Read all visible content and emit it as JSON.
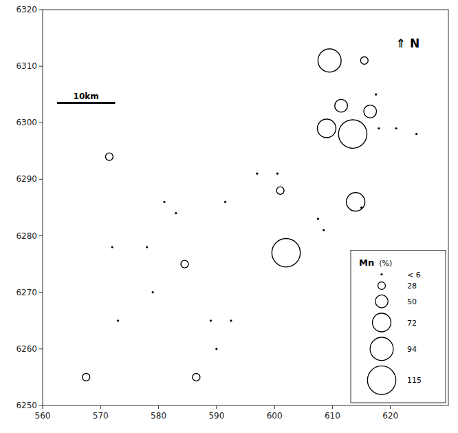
{
  "chart_data": {
    "type": "bubble",
    "xlim": [
      560,
      630
    ],
    "ylim": [
      6250,
      6320
    ],
    "xticks": [
      560,
      570,
      580,
      590,
      600,
      610,
      620
    ],
    "yticks": [
      6250,
      6260,
      6270,
      6280,
      6290,
      6300,
      6310,
      6320
    ],
    "grid": false,
    "legend": "lower right",
    "series": [
      {
        "color": "black",
        "x": [
          567.5,
          571.5,
          572.0,
          573.0,
          578.0,
          579.0,
          581.0,
          583.0,
          584.5,
          586.5,
          589.0,
          590.0,
          591.5,
          592.5,
          597.0,
          600.5,
          601.0,
          602.0,
          607.5,
          608.5,
          609.0,
          609.5,
          611.5,
          613.5,
          614.0,
          615.0,
          615.5,
          616.5,
          617.5,
          618.0,
          621.0,
          624.5
        ],
        "values": [
          6255,
          6294,
          6278,
          6265,
          6278,
          6270,
          6286,
          6284,
          6275,
          6255,
          6265,
          6260,
          6286,
          6265,
          6291,
          6291,
          6288,
          6277,
          6283,
          6281,
          6299,
          6311,
          6303,
          6298,
          6286,
          6285,
          6311,
          6302,
          6305,
          6299,
          6299,
          6298
        ],
        "sizes": [
          28,
          28,
          1,
          1,
          1,
          1,
          1,
          1,
          28,
          28,
          1,
          6,
          1,
          1,
          1,
          1,
          28,
          115,
          6,
          6,
          72,
          94,
          50,
          115,
          72,
          6,
          28,
          50,
          1,
          1,
          1,
          1
        ]
      }
    ],
    "size_legend": {
      "title": "Mn",
      "title_unit": "  (%)",
      "values": [
        6,
        28,
        50,
        72,
        94,
        115
      ],
      "labels": [
        "< 6",
        "28",
        "50",
        "72",
        "94",
        "115"
      ],
      "radii": [
        0,
        0.65,
        1.1,
        1.6,
        2.0,
        2.45
      ]
    },
    "scalebar": {
      "x": [
        562.5,
        572.5
      ],
      "y": 6303.5,
      "label": "10km"
    },
    "annotations": [
      {
        "text": "⇑ N",
        "x": 623,
        "y": 6314
      }
    ]
  }
}
